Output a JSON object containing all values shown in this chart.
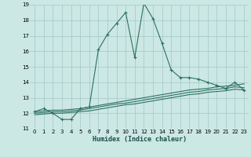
{
  "xlabel": "Humidex (Indice chaleur)",
  "background_color": "#cce8e4",
  "grid_color": "#a8ccc8",
  "line_color": "#2d7060",
  "xlim": [
    -0.5,
    23.5
  ],
  "ylim": [
    11,
    19
  ],
  "yticks": [
    11,
    12,
    13,
    14,
    15,
    16,
    17,
    18,
    19
  ],
  "xticks": [
    0,
    1,
    2,
    3,
    4,
    5,
    6,
    7,
    8,
    9,
    10,
    11,
    12,
    13,
    14,
    15,
    16,
    17,
    18,
    19,
    20,
    21,
    22,
    23
  ],
  "series1_x": [
    0,
    1,
    2,
    3,
    4,
    5,
    6,
    7,
    8,
    9,
    10,
    11,
    12,
    13,
    14,
    15,
    16,
    17,
    18,
    19,
    20,
    21,
    22,
    23
  ],
  "series1_y": [
    12.1,
    12.3,
    12.0,
    11.6,
    11.6,
    12.3,
    12.4,
    16.1,
    17.1,
    17.8,
    18.5,
    15.6,
    19.1,
    18.1,
    16.5,
    14.8,
    14.3,
    14.3,
    14.2,
    14.0,
    13.8,
    13.6,
    14.0,
    13.5
  ],
  "series2_x": [
    0,
    1,
    2,
    3,
    4,
    5,
    6,
    7,
    8,
    9,
    10,
    11,
    12,
    13,
    14,
    15,
    16,
    17,
    18,
    19,
    20,
    21,
    22,
    23
  ],
  "series2_y": [
    12.1,
    12.15,
    12.2,
    12.2,
    12.25,
    12.3,
    12.4,
    12.5,
    12.6,
    12.7,
    12.8,
    12.9,
    13.0,
    13.1,
    13.2,
    13.3,
    13.4,
    13.5,
    13.55,
    13.6,
    13.7,
    13.75,
    13.8,
    13.9
  ],
  "series3_x": [
    0,
    1,
    2,
    3,
    4,
    5,
    6,
    7,
    8,
    9,
    10,
    11,
    12,
    13,
    14,
    15,
    16,
    17,
    18,
    19,
    20,
    21,
    22,
    23
  ],
  "series3_y": [
    12.0,
    12.05,
    12.1,
    12.1,
    12.15,
    12.2,
    12.3,
    12.4,
    12.5,
    12.6,
    12.65,
    12.75,
    12.85,
    12.95,
    13.05,
    13.15,
    13.25,
    13.35,
    13.4,
    13.5,
    13.55,
    13.6,
    13.7,
    13.65
  ],
  "series4_x": [
    0,
    1,
    2,
    3,
    4,
    5,
    6,
    7,
    8,
    9,
    10,
    11,
    12,
    13,
    14,
    15,
    16,
    17,
    18,
    19,
    20,
    21,
    22,
    23
  ],
  "series4_y": [
    11.9,
    11.95,
    12.0,
    12.0,
    12.05,
    12.1,
    12.15,
    12.25,
    12.35,
    12.45,
    12.55,
    12.6,
    12.7,
    12.8,
    12.9,
    13.0,
    13.1,
    13.2,
    13.25,
    13.35,
    13.4,
    13.45,
    13.55,
    13.5
  ]
}
